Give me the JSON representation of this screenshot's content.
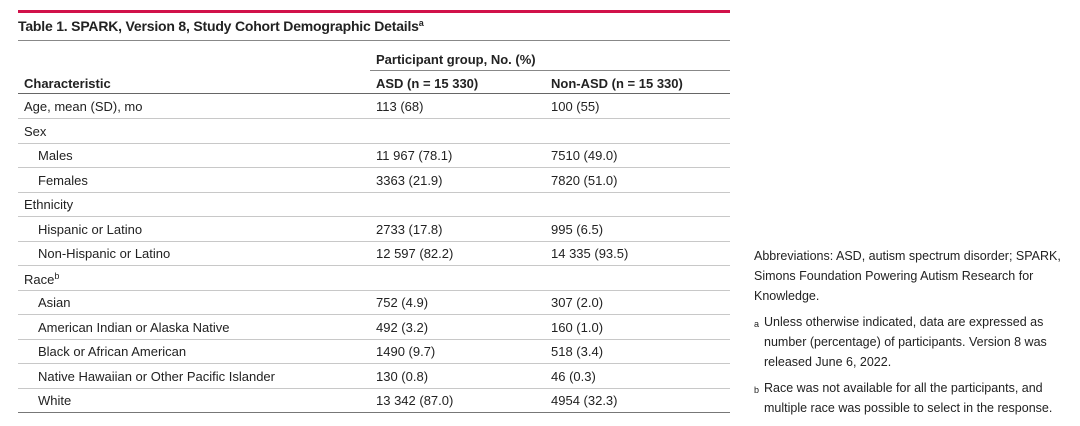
{
  "table": {
    "title": "Table 1. SPARK, Version 8, Study Cohort Demographic Details",
    "title_note": "a",
    "group_header": "Participant group, No. (%)",
    "columns": [
      "Characteristic",
      "ASD (n = 15 330)",
      "Non-ASD (n = 15 330)"
    ],
    "rows": [
      {
        "cells": [
          "Age, mean (SD), mo",
          "113 (68)",
          "100 (55)"
        ]
      },
      {
        "group": "Sex",
        "rows": [
          [
            "Males",
            "11 967 (78.1)",
            "7510 (49.0)"
          ],
          [
            "Females",
            "3363 (21.9)",
            "7820 (51.0)"
          ]
        ]
      },
      {
        "group": "Ethnicity",
        "rows": [
          [
            "Hispanic or Latino",
            "2733 (17.8)",
            "995 (6.5)"
          ],
          [
            "Non-Hispanic or Latino",
            "12 597 (82.2)",
            "14 335 (93.5)"
          ]
        ]
      },
      {
        "group": "Race",
        "note": "b",
        "rows": [
          [
            "Asian",
            "752 (4.9)",
            "307 (2.0)"
          ],
          [
            "American Indian or Alaska Native",
            "492 (3.2)",
            "160 (1.0)"
          ],
          [
            "Black or African American",
            "1490 (9.7)",
            "518 (3.4)"
          ],
          [
            "Native Hawaiian or Other Pacific Islander",
            "130 (0.8)",
            "46 (0.3)"
          ],
          [
            "White",
            "13 342 (87.0)",
            "4954 (32.3)"
          ]
        ]
      }
    ]
  },
  "notes": {
    "abbreviations": "Abbreviations: ASD, autism spectrum disorder; SPARK, Simons Foundation Powering Autism Research for Knowledge.",
    "footnotes": [
      {
        "mark": "a",
        "text": "Unless otherwise indicated, data are expressed as number (percentage) of participants. Version 8 was released June 6, 2022."
      },
      {
        "mark": "b",
        "text": "Race was not available for all the participants, and multiple race was possible to select in the response."
      }
    ]
  }
}
